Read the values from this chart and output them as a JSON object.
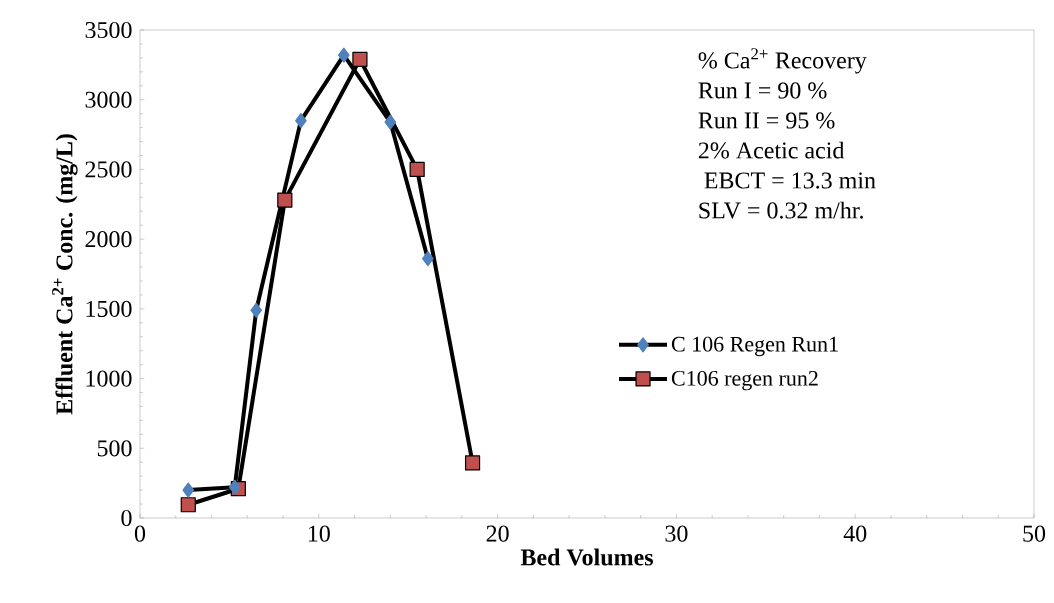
{
  "chart_data": {
    "type": "line",
    "xlabel": "Bed Volumes",
    "ylabel": "Effluent Ca$^{2+}$ Conc. (mg/L)",
    "xlim": [
      0,
      50
    ],
    "ylim": [
      0,
      3500
    ],
    "xticks": [
      0,
      10,
      20,
      30,
      40,
      50
    ],
    "yticks": [
      0,
      500,
      1000,
      1500,
      2000,
      2500,
      3000,
      3500
    ],
    "grid": false,
    "legend": "right",
    "line_style": "solid",
    "annotations": [
      "% Ca$^{2+}$ Recovery",
      "Run I = 90 %",
      "Run II = 95 %",
      "2% Acetic acid",
      " EBCT = 13.3 min",
      "SLV = 0.32 m/hr."
    ],
    "series": [
      {
        "name": "C 106 Regen Run1",
        "color": "#4f81bd",
        "marker": "diamond",
        "x": [
          2.7,
          5.3,
          6.5,
          9.0,
          11.4,
          14.0,
          16.1
        ],
        "values": [
          200,
          220,
          1490,
          2850,
          3320,
          2840,
          1860
        ]
      },
      {
        "name": "C106 regen run2",
        "color": "#c0504d",
        "marker": "square",
        "x": [
          2.7,
          5.5,
          8.1,
          12.3,
          15.5,
          18.6
        ],
        "values": [
          95,
          210,
          2280,
          3290,
          2500,
          395
        ]
      }
    ]
  }
}
